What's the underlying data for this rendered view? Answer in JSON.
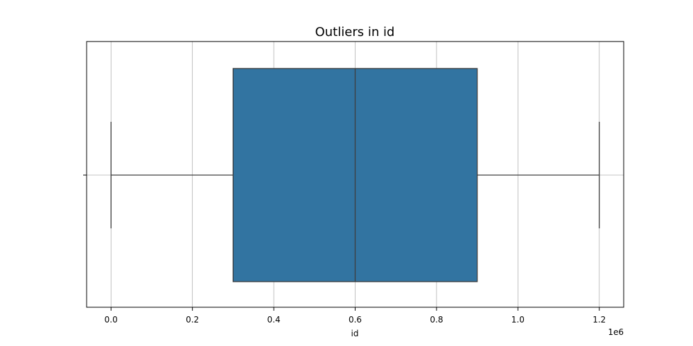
{
  "chart_data": {
    "type": "box",
    "title": "Outliers in id",
    "xlabel": "id",
    "ylabel": "",
    "x_offset_label": "1e6",
    "xlim": [
      -60000,
      1260000
    ],
    "x_ticks": [
      0,
      200000,
      400000,
      600000,
      800000,
      1000000,
      1200000
    ],
    "x_tick_labels": [
      "0.0",
      "0.2",
      "0.4",
      "0.6",
      "0.8",
      "1.0",
      "1.2"
    ],
    "grid": true,
    "box": {
      "whisker_low": 0,
      "q1": 300000,
      "median": 600000,
      "q3": 900000,
      "whisker_high": 1200000
    },
    "colors": {
      "box_fill": "#3274a1",
      "line": "#3d3d3d",
      "grid": "#b0b0b0",
      "axes": "#000000"
    }
  }
}
